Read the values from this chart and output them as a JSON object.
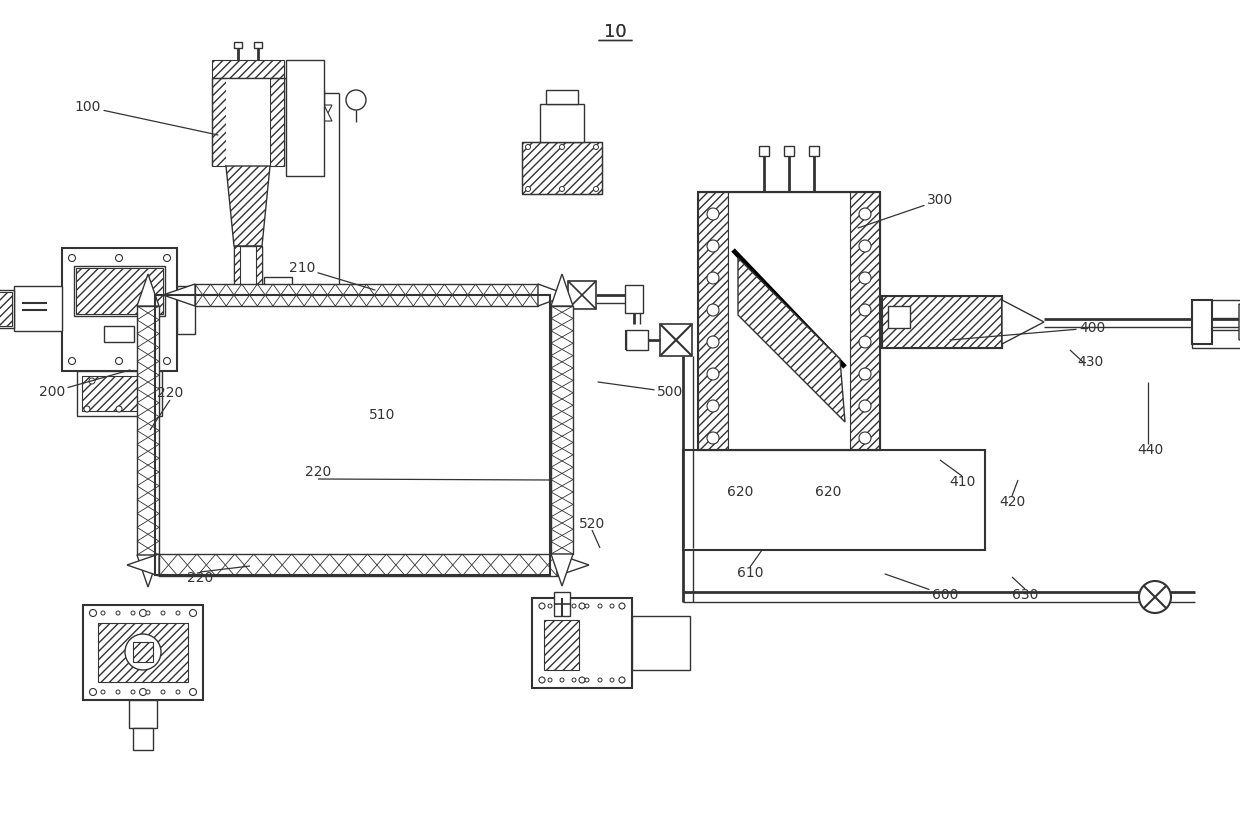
{
  "title": "10",
  "bg_color": "#ffffff",
  "line_color": "#333333"
}
